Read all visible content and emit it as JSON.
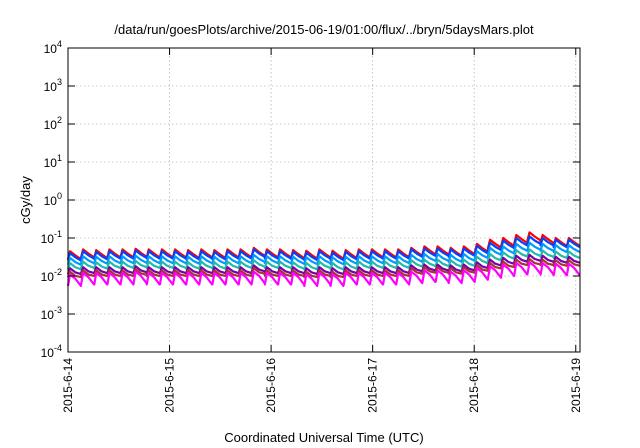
{
  "chart_data": {
    "type": "line",
    "title": "/data/run/goesPlots/archive/2015-06-19/01:00/flux/../bryn/5daysMars.plot",
    "xlabel": "Coordinated Universal Time (UTC)",
    "ylabel": "cGy/day",
    "yscale": "log",
    "ylim": [
      0.0001,
      10000
    ],
    "xlim": [
      "2015-06-14",
      "2015-06-19 01:00"
    ],
    "grid": true,
    "y_ticks": [
      {
        "value": 0.0001,
        "base": "10",
        "exp": "-4"
      },
      {
        "value": 0.001,
        "base": "10",
        "exp": "-3"
      },
      {
        "value": 0.01,
        "base": "10",
        "exp": "-2"
      },
      {
        "value": 0.1,
        "base": "10",
        "exp": "-1"
      },
      {
        "value": 1,
        "base": "10",
        "exp": "0"
      },
      {
        "value": 10,
        "base": "10",
        "exp": "1"
      },
      {
        "value": 100,
        "base": "10",
        "exp": "2"
      },
      {
        "value": 1000,
        "base": "10",
        "exp": "3"
      },
      {
        "value": 10000,
        "base": "10",
        "exp": "4"
      }
    ],
    "x_ticks": [
      {
        "value": 0,
        "label": "2015-6-14"
      },
      {
        "value": 1,
        "label": "2015-6-15"
      },
      {
        "value": 2,
        "label": "2015-6-16"
      },
      {
        "value": 3,
        "label": "2015-6-17"
      },
      {
        "value": 4,
        "label": "2015-6-18"
      },
      {
        "value": 5,
        "label": "2015-6-19"
      }
    ],
    "series": [
      {
        "color": "#ff0000",
        "values": [
          0.045,
          0.05,
          0.048,
          0.05,
          0.05,
          0.052,
          0.05,
          0.05,
          0.05,
          0.048,
          0.05,
          0.048,
          0.05,
          0.05,
          0.055,
          0.05,
          0.05,
          0.048,
          0.046,
          0.05,
          0.046,
          0.048,
          0.05,
          0.05,
          0.05,
          0.05,
          0.055,
          0.06,
          0.06,
          0.055,
          0.06,
          0.07,
          0.09,
          0.1,
          0.12,
          0.14,
          0.12,
          0.1,
          0.1
        ]
      },
      {
        "color": "#0044ff",
        "values": [
          0.04,
          0.045,
          0.043,
          0.045,
          0.045,
          0.047,
          0.045,
          0.045,
          0.045,
          0.043,
          0.045,
          0.043,
          0.045,
          0.045,
          0.05,
          0.045,
          0.045,
          0.043,
          0.041,
          0.045,
          0.041,
          0.043,
          0.045,
          0.045,
          0.045,
          0.045,
          0.05,
          0.053,
          0.053,
          0.05,
          0.053,
          0.062,
          0.075,
          0.085,
          0.1,
          0.11,
          0.1,
          0.09,
          0.09
        ]
      },
      {
        "color": "#0099ff",
        "values": [
          0.03,
          0.033,
          0.032,
          0.033,
          0.033,
          0.034,
          0.033,
          0.033,
          0.033,
          0.032,
          0.033,
          0.032,
          0.033,
          0.033,
          0.036,
          0.033,
          0.033,
          0.032,
          0.031,
          0.033,
          0.031,
          0.032,
          0.033,
          0.033,
          0.033,
          0.033,
          0.036,
          0.038,
          0.038,
          0.036,
          0.038,
          0.045,
          0.055,
          0.06,
          0.07,
          0.075,
          0.07,
          0.065,
          0.065
        ]
      },
      {
        "color": "#22bbaa",
        "values": [
          0.022,
          0.024,
          0.023,
          0.024,
          0.024,
          0.025,
          0.024,
          0.024,
          0.024,
          0.023,
          0.024,
          0.023,
          0.024,
          0.024,
          0.026,
          0.024,
          0.024,
          0.023,
          0.022,
          0.024,
          0.022,
          0.023,
          0.024,
          0.024,
          0.024,
          0.024,
          0.026,
          0.027,
          0.027,
          0.026,
          0.027,
          0.032,
          0.038,
          0.042,
          0.048,
          0.05,
          0.047,
          0.044,
          0.044
        ]
      },
      {
        "color": "#7700aa",
        "values": [
          0.016,
          0.017,
          0.017,
          0.017,
          0.017,
          0.018,
          0.017,
          0.017,
          0.017,
          0.017,
          0.017,
          0.017,
          0.017,
          0.017,
          0.019,
          0.017,
          0.017,
          0.017,
          0.016,
          0.017,
          0.016,
          0.017,
          0.017,
          0.017,
          0.017,
          0.017,
          0.019,
          0.02,
          0.02,
          0.019,
          0.02,
          0.023,
          0.027,
          0.03,
          0.034,
          0.036,
          0.034,
          0.032,
          0.032
        ]
      },
      {
        "color": "#aa3333",
        "values": [
          0.013,
          0.014,
          0.014,
          0.014,
          0.014,
          0.015,
          0.014,
          0.014,
          0.014,
          0.014,
          0.014,
          0.014,
          0.014,
          0.014,
          0.016,
          0.014,
          0.014,
          0.014,
          0.013,
          0.014,
          0.013,
          0.014,
          0.014,
          0.014,
          0.014,
          0.014,
          0.016,
          0.017,
          0.017,
          0.016,
          0.017,
          0.019,
          0.022,
          0.024,
          0.027,
          0.028,
          0.027,
          0.026,
          0.026
        ]
      },
      {
        "color": "#ff00ff",
        "values": [
          0.011,
          0.012,
          0.012,
          0.012,
          0.012,
          0.013,
          0.012,
          0.012,
          0.012,
          0.012,
          0.012,
          0.012,
          0.012,
          0.012,
          0.013,
          0.012,
          0.012,
          0.012,
          0.011,
          0.012,
          0.011,
          0.012,
          0.012,
          0.012,
          0.012,
          0.012,
          0.013,
          0.014,
          0.014,
          0.013,
          0.014,
          0.016,
          0.018,
          0.02,
          0.022,
          0.023,
          0.022,
          0.021,
          0.021
        ]
      }
    ]
  }
}
